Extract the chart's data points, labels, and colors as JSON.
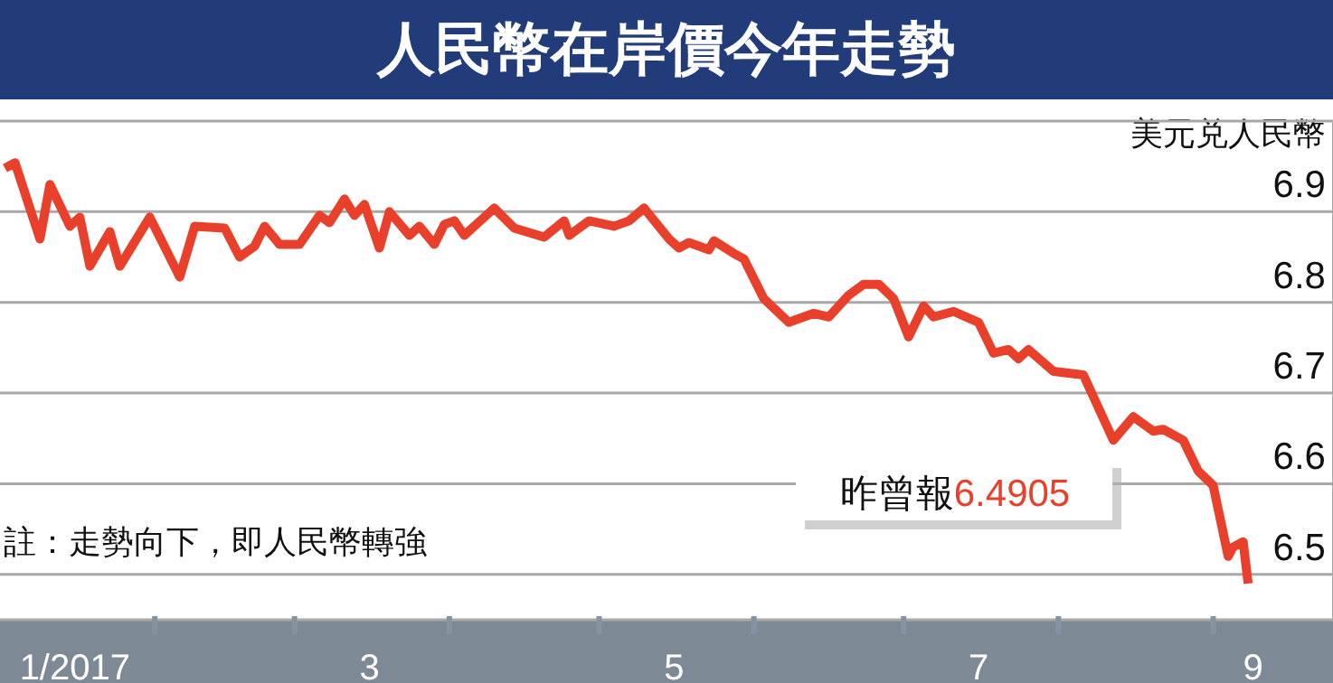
{
  "chart_data": {
    "type": "line",
    "title": "人民幣在岸價今年走勢",
    "ylabel": "美元兑人民幣",
    "x": [
      "2017-01-02",
      "2017-01-04",
      "2017-01-09",
      "2017-01-11",
      "2017-01-15",
      "2017-01-17",
      "2017-01-19",
      "2017-01-23",
      "2017-01-25",
      "2017-01-31",
      "2017-02-06",
      "2017-02-09",
      "2017-02-15",
      "2017-02-18",
      "2017-02-21",
      "2017-02-23",
      "2017-02-26",
      "2017-03-02",
      "2017-03-06",
      "2017-03-08",
      "2017-03-11",
      "2017-03-13",
      "2017-03-15",
      "2017-03-18",
      "2017-03-20",
      "2017-03-24",
      "2017-03-26",
      "2017-03-29",
      "2017-03-31",
      "2017-04-02",
      "2017-04-04",
      "2017-04-10",
      "2017-04-14",
      "2017-04-20",
      "2017-04-24",
      "2017-04-25",
      "2017-04-29",
      "2017-05-04",
      "2017-05-07",
      "2017-05-10",
      "2017-05-15",
      "2017-05-17",
      "2017-05-19",
      "2017-05-23",
      "2017-05-24",
      "2017-05-28",
      "2017-05-30",
      "2017-06-03",
      "2017-06-08",
      "2017-06-13",
      "2017-06-16",
      "2017-06-20",
      "2017-06-23",
      "2017-06-26",
      "2017-06-29",
      "2017-07-02",
      "2017-07-05",
      "2017-07-07",
      "2017-07-11",
      "2017-07-16",
      "2017-07-19",
      "2017-07-22",
      "2017-07-24",
      "2017-07-26",
      "2017-07-31",
      "2017-08-06",
      "2017-08-12",
      "2017-08-16",
      "2017-08-20",
      "2017-08-22",
      "2017-08-26",
      "2017-08-29",
      "2017-09-01",
      "2017-09-04",
      "2017-09-05",
      "2017-09-07",
      "2017-09-08"
    ],
    "series": [
      {
        "color": "#e8402a",
        "values": [
          6.948,
          6.954,
          6.87,
          6.93,
          6.884,
          6.894,
          6.84,
          6.878,
          6.84,
          6.894,
          6.828,
          6.884,
          6.882,
          6.85,
          6.862,
          6.884,
          6.864,
          6.864,
          6.896,
          6.888,
          6.914,
          6.896,
          6.908,
          6.86,
          6.9,
          6.874,
          6.884,
          6.864,
          6.886,
          6.89,
          6.874,
          6.904,
          6.882,
          6.872,
          6.89,
          6.874,
          6.89,
          6.884,
          6.89,
          6.904,
          6.87,
          6.86,
          6.866,
          6.858,
          6.868,
          6.854,
          6.848,
          6.804,
          6.778,
          6.788,
          6.784,
          6.808,
          6.82,
          6.82,
          6.804,
          6.762,
          6.796,
          6.784,
          6.79,
          6.778,
          6.744,
          6.748,
          6.738,
          6.748,
          6.724,
          6.72,
          6.648,
          6.674,
          6.658,
          6.66,
          6.648,
          6.614,
          6.598,
          6.52,
          6.53,
          6.536,
          6.49
        ]
      }
    ],
    "xlim": [
      "2017-01-01",
      "2017-09-25"
    ],
    "xticks": [
      {
        "value": "2017-01-16",
        "label": "1/2017"
      },
      {
        "value": "2017-02-01",
        "label": null
      },
      {
        "value": "2017-03-01",
        "label": null
      },
      {
        "value": "2017-03-16",
        "label": "3"
      },
      {
        "value": "2017-04-01",
        "label": null
      },
      {
        "value": "2017-05-01",
        "label": null
      },
      {
        "value": "2017-05-16",
        "label": "5"
      },
      {
        "value": "2017-06-01",
        "label": null
      },
      {
        "value": "2017-07-01",
        "label": null
      },
      {
        "value": "2017-07-16",
        "label": "7"
      },
      {
        "value": "2017-08-01",
        "label": null
      },
      {
        "value": "2017-09-01",
        "label": null
      },
      {
        "value": "2017-09-09",
        "label": "9"
      }
    ],
    "ylim": [
      6.45,
      7.0
    ],
    "yticks": [
      6.5,
      6.6,
      6.7,
      6.8,
      6.9
    ],
    "grid": "y",
    "legend": false,
    "marker": "none",
    "line_style": "solid",
    "annotations": [
      "昨曾報6.4905",
      "註：走勢向下，即人民幣轉強"
    ]
  }
}
